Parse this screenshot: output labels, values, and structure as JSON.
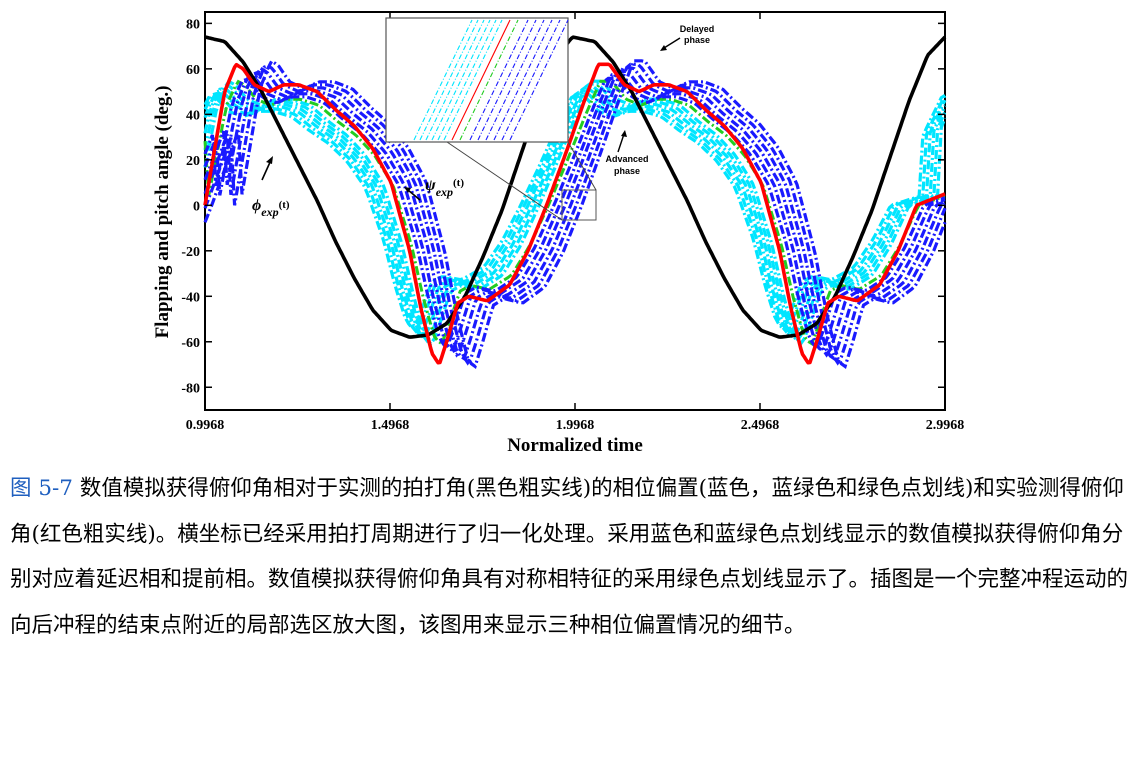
{
  "figure": {
    "chart_data": {
      "type": "line",
      "xlabel": "Normalized time",
      "ylabel": "Flapping and pitch angle (deg.)",
      "xlim": [
        0.9968,
        2.9968
      ],
      "ylim": [
        -90,
        85
      ],
      "x_ticks": [
        "0.9968",
        "1.4968",
        "1.9968",
        "2.4968",
        "2.9968"
      ],
      "y_ticks": [
        "80",
        "60",
        "40",
        "20",
        "0",
        "-20",
        "-40",
        "-60",
        "-80"
      ],
      "x_tick_values": [
        0.9968,
        1.4968,
        1.9968,
        2.4968,
        2.9968
      ],
      "y_tick_values": [
        80,
        60,
        40,
        20,
        0,
        -20,
        -40,
        -60,
        -80
      ],
      "grid": false,
      "series": [
        {
          "key": "phi",
          "color": "#000000",
          "style": "solid",
          "points": [
            [
              0.9968,
              74
            ],
            [
              1.05,
              72
            ],
            [
              1.1,
              63
            ],
            [
              1.15,
              50
            ],
            [
              1.2,
              34
            ],
            [
              1.25,
              18
            ],
            [
              1.3,
              2
            ],
            [
              1.35,
              -16
            ],
            [
              1.4,
              -32
            ],
            [
              1.45,
              -46
            ],
            [
              1.5,
              -55
            ],
            [
              1.55,
              -58
            ],
            [
              1.6,
              -57
            ],
            [
              1.65,
              -52
            ],
            [
              1.7,
              -40
            ],
            [
              1.75,
              -22
            ],
            [
              1.8,
              -2
            ],
            [
              1.85,
              22
            ],
            [
              1.9,
              46
            ],
            [
              1.95,
              66
            ],
            [
              1.99,
              74
            ],
            [
              2.05,
              72
            ],
            [
              2.1,
              63
            ],
            [
              2.15,
              50
            ],
            [
              2.2,
              34
            ],
            [
              2.25,
              18
            ],
            [
              2.3,
              2
            ],
            [
              2.35,
              -16
            ],
            [
              2.4,
              -32
            ],
            [
              2.45,
              -46
            ],
            [
              2.5,
              -55
            ],
            [
              2.55,
              -58
            ],
            [
              2.6,
              -57
            ],
            [
              2.65,
              -52
            ],
            [
              2.7,
              -40
            ],
            [
              2.75,
              -22
            ],
            [
              2.8,
              -2
            ],
            [
              2.85,
              22
            ],
            [
              2.9,
              46
            ],
            [
              2.95,
              66
            ],
            [
              2.9968,
              74
            ]
          ]
        },
        {
          "key": "psi",
          "color": "#ff0000",
          "style": "solid",
          "points": [
            [
              0.9968,
              0
            ],
            [
              1.02,
              22
            ],
            [
              1.05,
              50
            ],
            [
              1.08,
              62
            ],
            [
              1.1,
              60
            ],
            [
              1.13,
              53
            ],
            [
              1.17,
              50
            ],
            [
              1.21,
              53
            ],
            [
              1.25,
              53
            ],
            [
              1.3,
              50
            ],
            [
              1.35,
              42
            ],
            [
              1.4,
              35
            ],
            [
              1.45,
              25
            ],
            [
              1.5,
              10
            ],
            [
              1.55,
              -20
            ],
            [
              1.58,
              -45
            ],
            [
              1.61,
              -65
            ],
            [
              1.63,
              -70
            ],
            [
              1.65,
              -60
            ],
            [
              1.68,
              -43
            ],
            [
              1.71,
              -40
            ],
            [
              1.76,
              -42
            ],
            [
              1.82,
              -35
            ],
            [
              1.87,
              -20
            ],
            [
              1.92,
              0
            ],
            [
              1.97,
              22
            ],
            [
              2.02,
              45
            ],
            [
              2.06,
              62
            ],
            [
              2.09,
              62
            ],
            [
              2.13,
              53
            ],
            [
              2.17,
              50
            ],
            [
              2.21,
              53
            ],
            [
              2.25,
              53
            ],
            [
              2.3,
              50
            ],
            [
              2.35,
              42
            ],
            [
              2.4,
              35
            ],
            [
              2.45,
              25
            ],
            [
              2.5,
              10
            ],
            [
              2.55,
              -20
            ],
            [
              2.58,
              -45
            ],
            [
              2.61,
              -65
            ],
            [
              2.63,
              -70
            ],
            [
              2.65,
              -60
            ],
            [
              2.68,
              -43
            ],
            [
              2.71,
              -40
            ],
            [
              2.76,
              -42
            ],
            [
              2.82,
              -35
            ],
            [
              2.87,
              -20
            ],
            [
              2.92,
              0
            ],
            [
              2.9968,
              5
            ]
          ]
        }
      ],
      "advanced_offsets": [
        -0.07,
        -0.06,
        -0.05,
        -0.04,
        -0.03,
        -0.02
      ],
      "symmetric_offsets": [
        0
      ],
      "delayed_offsets": [
        0.02,
        0.035,
        0.05,
        0.065,
        0.08,
        0.095
      ],
      "series_colors": {
        "advanced": "#00e5ff",
        "symmetric": "#22cc22",
        "delayed": "#1a1aff"
      },
      "annotations": {
        "phi_label": "ϕ",
        "phi_sub": "exp",
        "phi_arg": "(t)",
        "psi_label": "ψ",
        "psi_sub": "exp",
        "psi_arg": "(t)",
        "delayed_1": "Delayed",
        "delayed_2": "phase",
        "advanced_1": "Advanced",
        "advanced_2": "phase"
      }
    }
  },
  "caption": {
    "label": "图 5-7",
    "text": "数值模拟获得俯仰角相对于实测的拍打角(黑色粗实线)的相位偏置(蓝色，蓝绿色和绿色点划线)和实验测得俯仰角(红色粗实线)。横坐标已经采用拍打周期进行了归一化处理。采用蓝色和蓝绿色点划线显示的数值模拟获得俯仰角分别对应着延迟相和提前相。数值模拟获得俯仰角具有对称相特征的采用绿色点划线显示了。插图是一个完整冲程运动的向后冲程的结束点附近的局部选区放大图，该图用来显示三种相位偏置情况的细节。"
  }
}
